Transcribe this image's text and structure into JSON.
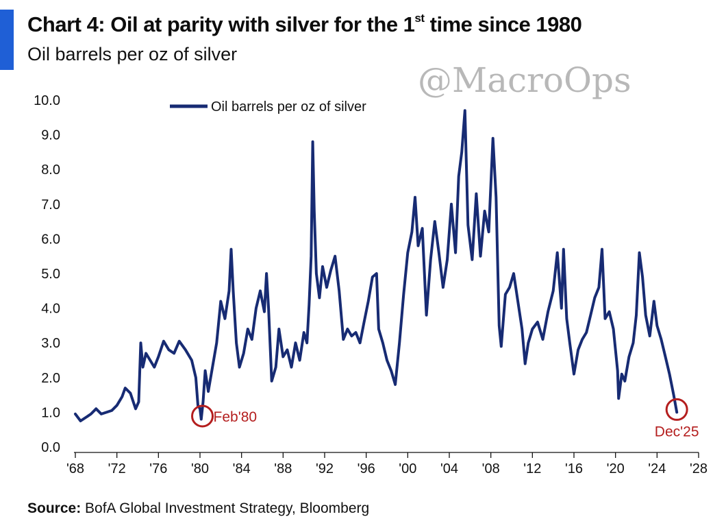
{
  "header": {
    "title_pre": "Chart 4: Oil at parity with silver for the 1",
    "title_sup": "st",
    "title_post": " time since 1980",
    "subtitle": "Oil barrels per oz of silver"
  },
  "watermark": "@MacroOps",
  "source": {
    "label": "Source:",
    "text": " BofA Global Investment Strategy, Bloomberg"
  },
  "colors": {
    "line": "#172b73",
    "annotation": "#b41e1e",
    "accent": "#1f5fd6",
    "axis": "#111111"
  },
  "chart_data": {
    "type": "line",
    "title": "Chart 4: Oil at parity with silver for the 1st time since 1980",
    "subtitle": "Oil barrels per oz of silver",
    "xlabel": "",
    "ylabel": "",
    "xlim": [
      1968,
      2028
    ],
    "ylim": [
      0,
      10
    ],
    "grid": false,
    "legend": {
      "position": "top-center",
      "entries": [
        "Oil barrels per oz of silver"
      ]
    },
    "x_ticks": [
      1968,
      1972,
      1976,
      1980,
      1984,
      1988,
      1992,
      1996,
      2000,
      2004,
      2008,
      2012,
      2016,
      2020,
      2024,
      2028
    ],
    "x_tick_labels": [
      "'68",
      "'72",
      "'76",
      "'80",
      "'84",
      "'88",
      "'92",
      "'96",
      "'00",
      "'04",
      "'08",
      "'12",
      "'16",
      "'20",
      "'24",
      "'28"
    ],
    "y_ticks": [
      0,
      1,
      2,
      3,
      4,
      5,
      6,
      7,
      8,
      9,
      10
    ],
    "y_tick_labels": [
      "0.0",
      "1.0",
      "2.0",
      "3.0",
      "4.0",
      "5.0",
      "6.0",
      "7.0",
      "8.0",
      "9.0",
      "10.0"
    ],
    "annotations": [
      {
        "label": "Feb'80",
        "x": 1980.1,
        "y": 0.85
      },
      {
        "label": "Dec'25",
        "x": 2025.9,
        "y": 1.0
      }
    ],
    "series": [
      {
        "name": "Oil barrels per oz of silver",
        "points": [
          [
            1968.0,
            0.95
          ],
          [
            1968.5,
            0.75
          ],
          [
            1969.0,
            0.85
          ],
          [
            1969.5,
            0.95
          ],
          [
            1970.0,
            1.1
          ],
          [
            1970.5,
            0.95
          ],
          [
            1971.0,
            1.0
          ],
          [
            1971.5,
            1.05
          ],
          [
            1972.0,
            1.2
          ],
          [
            1972.5,
            1.45
          ],
          [
            1972.8,
            1.7
          ],
          [
            1973.3,
            1.55
          ],
          [
            1973.8,
            1.1
          ],
          [
            1974.1,
            1.3
          ],
          [
            1974.3,
            3.0
          ],
          [
            1974.5,
            2.3
          ],
          [
            1974.8,
            2.7
          ],
          [
            1975.2,
            2.5
          ],
          [
            1975.6,
            2.3
          ],
          [
            1976.0,
            2.6
          ],
          [
            1976.5,
            3.05
          ],
          [
            1977.0,
            2.8
          ],
          [
            1977.5,
            2.7
          ],
          [
            1978.0,
            3.05
          ],
          [
            1978.6,
            2.8
          ],
          [
            1979.2,
            2.5
          ],
          [
            1979.6,
            2.0
          ],
          [
            1979.8,
            1.2
          ],
          [
            1980.0,
            1.1
          ],
          [
            1980.12,
            0.8
          ],
          [
            1980.3,
            1.3
          ],
          [
            1980.5,
            2.2
          ],
          [
            1980.8,
            1.6
          ],
          [
            1981.2,
            2.3
          ],
          [
            1981.6,
            3.0
          ],
          [
            1982.0,
            4.2
          ],
          [
            1982.4,
            3.7
          ],
          [
            1982.8,
            4.5
          ],
          [
            1983.0,
            5.7
          ],
          [
            1983.2,
            4.5
          ],
          [
            1983.5,
            3.0
          ],
          [
            1983.8,
            2.3
          ],
          [
            1984.2,
            2.7
          ],
          [
            1984.6,
            3.4
          ],
          [
            1985.0,
            3.1
          ],
          [
            1985.4,
            4.0
          ],
          [
            1985.8,
            4.5
          ],
          [
            1986.2,
            3.9
          ],
          [
            1986.4,
            5.0
          ],
          [
            1986.6,
            4.0
          ],
          [
            1986.9,
            1.9
          ],
          [
            1987.3,
            2.3
          ],
          [
            1987.6,
            3.4
          ],
          [
            1988.0,
            2.6
          ],
          [
            1988.4,
            2.8
          ],
          [
            1988.8,
            2.3
          ],
          [
            1989.2,
            3.0
          ],
          [
            1989.6,
            2.5
          ],
          [
            1990.0,
            3.3
          ],
          [
            1990.3,
            3.0
          ],
          [
            1990.5,
            4.1
          ],
          [
            1990.7,
            5.5
          ],
          [
            1990.85,
            8.8
          ],
          [
            1991.0,
            6.8
          ],
          [
            1991.2,
            5.0
          ],
          [
            1991.5,
            4.3
          ],
          [
            1991.8,
            5.2
          ],
          [
            1992.2,
            4.6
          ],
          [
            1992.6,
            5.1
          ],
          [
            1993.0,
            5.5
          ],
          [
            1993.4,
            4.5
          ],
          [
            1993.8,
            3.1
          ],
          [
            1994.2,
            3.4
          ],
          [
            1994.6,
            3.2
          ],
          [
            1995.0,
            3.3
          ],
          [
            1995.4,
            3.0
          ],
          [
            1995.8,
            3.6
          ],
          [
            1996.2,
            4.2
          ],
          [
            1996.6,
            4.9
          ],
          [
            1997.0,
            5.0
          ],
          [
            1997.2,
            3.4
          ],
          [
            1997.6,
            3.0
          ],
          [
            1998.0,
            2.5
          ],
          [
            1998.4,
            2.2
          ],
          [
            1998.8,
            1.8
          ],
          [
            1999.2,
            3.0
          ],
          [
            1999.6,
            4.4
          ],
          [
            2000.0,
            5.6
          ],
          [
            2000.4,
            6.2
          ],
          [
            2000.7,
            7.2
          ],
          [
            2001.0,
            5.8
          ],
          [
            2001.4,
            6.3
          ],
          [
            2001.8,
            3.8
          ],
          [
            2002.2,
            5.4
          ],
          [
            2002.6,
            6.5
          ],
          [
            2003.0,
            5.6
          ],
          [
            2003.4,
            4.6
          ],
          [
            2003.8,
            5.4
          ],
          [
            2004.2,
            7.0
          ],
          [
            2004.6,
            5.6
          ],
          [
            2004.9,
            7.8
          ],
          [
            2005.2,
            8.5
          ],
          [
            2005.5,
            9.7
          ],
          [
            2005.8,
            6.4
          ],
          [
            2006.2,
            5.4
          ],
          [
            2006.6,
            7.3
          ],
          [
            2007.0,
            5.5
          ],
          [
            2007.4,
            6.8
          ],
          [
            2007.8,
            6.2
          ],
          [
            2008.2,
            8.9
          ],
          [
            2008.5,
            7.2
          ],
          [
            2008.8,
            3.5
          ],
          [
            2009.0,
            2.9
          ],
          [
            2009.4,
            4.4
          ],
          [
            2009.8,
            4.6
          ],
          [
            2010.2,
            5.0
          ],
          [
            2010.6,
            4.2
          ],
          [
            2011.0,
            3.4
          ],
          [
            2011.3,
            2.4
          ],
          [
            2011.6,
            3.0
          ],
          [
            2012.0,
            3.4
          ],
          [
            2012.5,
            3.6
          ],
          [
            2013.0,
            3.1
          ],
          [
            2013.5,
            3.9
          ],
          [
            2014.0,
            4.5
          ],
          [
            2014.4,
            5.6
          ],
          [
            2014.8,
            4.0
          ],
          [
            2015.0,
            5.7
          ],
          [
            2015.3,
            3.7
          ],
          [
            2015.6,
            3.0
          ],
          [
            2016.0,
            2.1
          ],
          [
            2016.4,
            2.8
          ],
          [
            2016.8,
            3.1
          ],
          [
            2017.2,
            3.3
          ],
          [
            2017.6,
            3.8
          ],
          [
            2018.0,
            4.3
          ],
          [
            2018.4,
            4.6
          ],
          [
            2018.7,
            5.7
          ],
          [
            2019.0,
            3.7
          ],
          [
            2019.4,
            3.9
          ],
          [
            2019.8,
            3.4
          ],
          [
            2020.2,
            2.2
          ],
          [
            2020.3,
            1.4
          ],
          [
            2020.6,
            2.1
          ],
          [
            2020.9,
            1.9
          ],
          [
            2021.3,
            2.6
          ],
          [
            2021.7,
            3.0
          ],
          [
            2022.0,
            3.8
          ],
          [
            2022.3,
            5.6
          ],
          [
            2022.6,
            4.9
          ],
          [
            2022.9,
            3.8
          ],
          [
            2023.3,
            3.2
          ],
          [
            2023.7,
            4.2
          ],
          [
            2024.0,
            3.5
          ],
          [
            2024.4,
            3.1
          ],
          [
            2024.8,
            2.6
          ],
          [
            2025.2,
            2.1
          ],
          [
            2025.6,
            1.5
          ],
          [
            2025.9,
            1.0
          ]
        ]
      }
    ]
  }
}
